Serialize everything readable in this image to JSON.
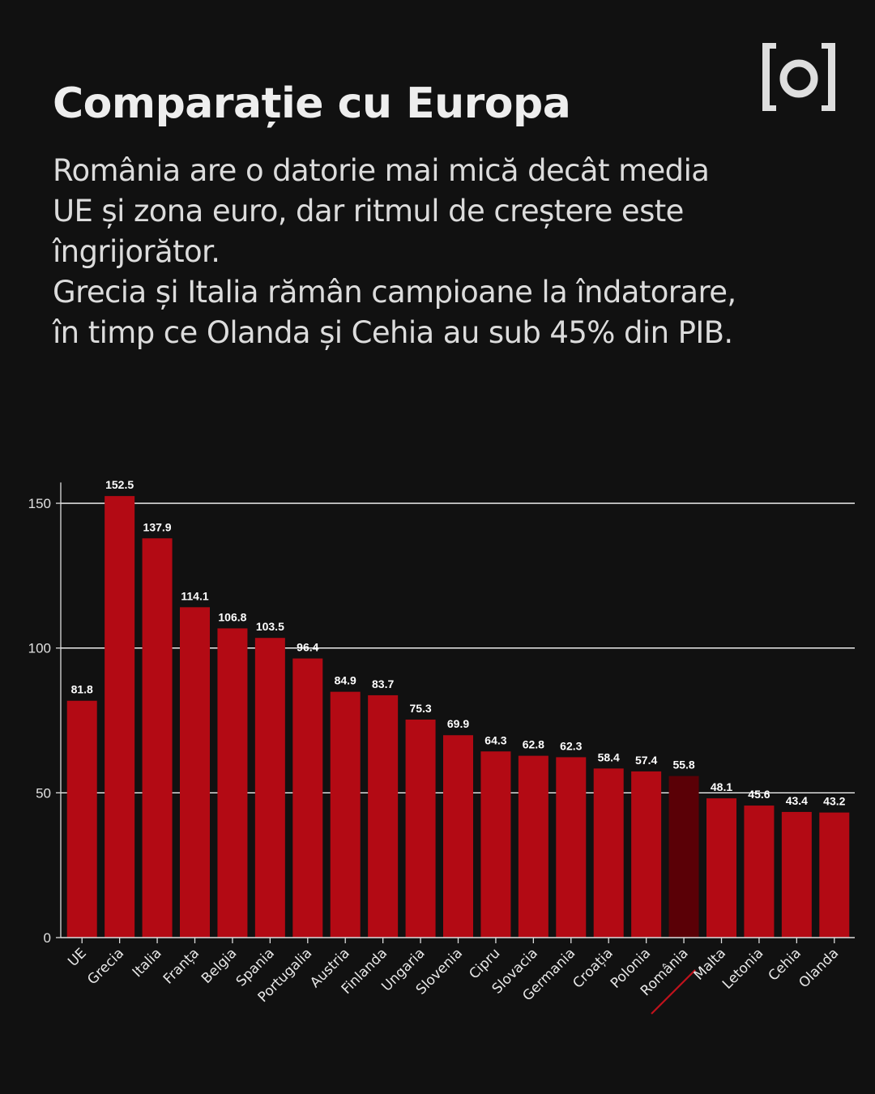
{
  "header": {
    "title": "Comparație cu Europa",
    "subtitle": "România are o datorie mai mică decât media\nUE și zona euro, dar ritmul de creștere este\nîngrijorător.\nGrecia și Italia rămân campioane la îndatorare,\nîn timp ce Olanda și Cehia au sub 45% din PIB."
  },
  "logo": {
    "name": "bracket-o-logo",
    "text": "[o]"
  },
  "colors": {
    "background": "#111111",
    "bar": "#b30a14",
    "highlight_bar": "#5a0006",
    "highlight_underline": "#c0121c",
    "grid": "#ffffff"
  },
  "chart_data": {
    "type": "bar",
    "categories": [
      "UE",
      "Grecia",
      "Italia",
      "Franța",
      "Belgia",
      "Spania",
      "Portugalia",
      "Austria",
      "Finlanda",
      "Ungaria",
      "Slovenia",
      "Cipru",
      "Slovacia",
      "Germania",
      "Croația",
      "Polonia",
      "România",
      "Malta",
      "Letonia",
      "Cehia",
      "Olanda"
    ],
    "values": [
      81.8,
      152.5,
      137.9,
      114.1,
      106.8,
      103.5,
      96.4,
      84.9,
      83.7,
      75.3,
      69.9,
      64.3,
      62.8,
      62.3,
      58.4,
      57.4,
      55.8,
      48.1,
      45.6,
      43.4,
      43.2
    ],
    "highlight": "România",
    "yticks": [
      0,
      50,
      100,
      150
    ],
    "ylim": [
      0,
      160
    ],
    "grid": true,
    "xlabel": "",
    "ylabel": ""
  }
}
